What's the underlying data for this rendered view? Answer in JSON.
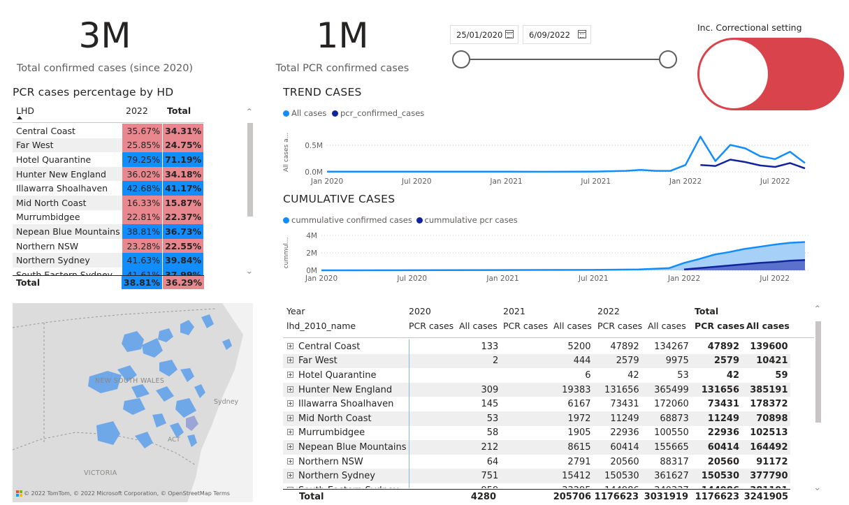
{
  "kpis": {
    "total_confirmed": {
      "value": "3M",
      "label": "Total confirmed cases (since 2020)"
    },
    "total_pcr": {
      "value": "1M",
      "label": "Total PCR confirmed cases"
    }
  },
  "date_slicer": {
    "start": "25/01/2020",
    "end": "6/09/2022"
  },
  "toggle": {
    "label": "Inc. Correctional setting",
    "state": "off",
    "color": "#d9434b"
  },
  "hd_matrix": {
    "title": "PCR cases percentage by HD",
    "col_name": "LHD",
    "col_2022": "2022",
    "col_total": "Total",
    "rows": [
      {
        "name": "Central Coast",
        "v2022": "35.67%",
        "total": "34.31%",
        "color": "pink"
      },
      {
        "name": "Far West",
        "v2022": "25.85%",
        "total": "24.75%",
        "color": "pink"
      },
      {
        "name": "Hotel Quarantine",
        "v2022": "79.25%",
        "total": "71.19%",
        "color": "blue"
      },
      {
        "name": "Hunter New England",
        "v2022": "36.02%",
        "total": "34.18%",
        "color": "pink"
      },
      {
        "name": "Illawarra Shoalhaven",
        "v2022": "42.68%",
        "total": "41.17%",
        "color": "blue"
      },
      {
        "name": "Mid North Coast",
        "v2022": "16.33%",
        "total": "15.87%",
        "color": "pink"
      },
      {
        "name": "Murrumbidgee",
        "v2022": "22.81%",
        "total": "22.37%",
        "color": "pink"
      },
      {
        "name": "Nepean Blue Mountains",
        "v2022": "38.81%",
        "total": "36.73%",
        "color": "blue"
      },
      {
        "name": "Northern NSW",
        "v2022": "23.28%",
        "total": "22.55%",
        "color": "pink"
      },
      {
        "name": "Northern Sydney",
        "v2022": "41.63%",
        "total": "39.84%",
        "color": "blue"
      }
    ],
    "partial_row": {
      "name": "South Eastern Sydney",
      "v2022": "41.61%",
      "total": "37.99%"
    },
    "total_row": {
      "name": "Total",
      "v2022": "38.81%",
      "total": "36.29%"
    }
  },
  "trend_chart": {
    "title": "TREND CASES",
    "legend": [
      "All cases",
      "pcr_confirmed_cases"
    ],
    "ylabel": "All cases a...",
    "yticks": [
      "0.5M",
      "0.0M"
    ],
    "xticks": [
      "Jan 2020",
      "Jul 2020",
      "Jan 2021",
      "Jul 2021",
      "Jan 2022",
      "Jul 2022"
    ]
  },
  "cum_chart": {
    "title": "CUMULATIVE CASES",
    "legend": [
      "cummulative confirmed cases",
      "cummulative pcr cases"
    ],
    "ylabel": "cummul...",
    "yticks": [
      "4M",
      "2M",
      "0M"
    ],
    "xticks": [
      "Jan 2020",
      "Jul 2020",
      "Jan 2021",
      "Jul 2021",
      "Jan 2022",
      "Jul 2022"
    ]
  },
  "chart_data": [
    {
      "type": "line",
      "title": "TREND CASES",
      "ylabel": "All cases a...",
      "x": [
        "2020-01",
        "2020-04",
        "2020-07",
        "2020-10",
        "2021-01",
        "2021-04",
        "2021-07",
        "2021-09",
        "2021-10",
        "2021-11",
        "2021-12",
        "2022-01",
        "2022-02",
        "2022-03",
        "2022-04",
        "2022-05",
        "2022-06",
        "2022-07",
        "2022-08",
        "2022-09"
      ],
      "series": [
        {
          "name": "All cases",
          "color": "#118dff",
          "values": [
            0.005,
            0.004,
            0.004,
            0.003,
            0.003,
            0.002,
            0.006,
            0.02,
            0.04,
            0.02,
            0.02,
            0.14,
            0.72,
            0.22,
            0.55,
            0.48,
            0.32,
            0.26,
            0.41,
            0.18
          ]
        },
        {
          "name": "pcr_confirmed_cases",
          "color": "#12239e",
          "values": [
            null,
            null,
            null,
            null,
            null,
            null,
            null,
            null,
            null,
            null,
            null,
            null,
            0.14,
            0.12,
            0.25,
            0.2,
            0.13,
            0.1,
            0.18,
            0.07
          ]
        }
      ],
      "ylim": [
        0,
        0.8
      ]
    },
    {
      "type": "area",
      "title": "CUMULATIVE CASES",
      "ylabel": "cummul...",
      "x": [
        "2020-01",
        "2020-07",
        "2021-01",
        "2021-07",
        "2021-10",
        "2021-12",
        "2022-01",
        "2022-02",
        "2022-03",
        "2022-04",
        "2022-05",
        "2022-06",
        "2022-07",
        "2022-08",
        "2022-09"
      ],
      "series": [
        {
          "name": "cummulative confirmed cases",
          "color": "#118dff",
          "values": [
            0.0,
            0.005,
            0.03,
            0.05,
            0.1,
            0.25,
            0.85,
            1.3,
            1.8,
            2.1,
            2.45,
            2.7,
            2.95,
            3.15,
            3.24
          ]
        },
        {
          "name": "cummulative pcr cases",
          "color": "#12239e",
          "values": [
            null,
            null,
            null,
            null,
            null,
            null,
            0.1,
            0.25,
            0.4,
            0.55,
            0.7,
            0.85,
            0.95,
            1.1,
            1.18
          ]
        }
      ],
      "ylim": [
        0,
        4
      ]
    }
  ],
  "map": {
    "labels": [
      "NEW SOUTH WALES",
      "Sydney",
      "ACT",
      "VICTORIA"
    ],
    "attribution": "© 2022 TomTom, © 2022 Microsoft Corporation, © OpenStreetMap  Terms"
  },
  "big_table": {
    "header_year": "Year",
    "header_name": "lhd_2010_name",
    "years": [
      "2020",
      "2021",
      "2022",
      "Total"
    ],
    "subcols": [
      "PCR cases",
      "All cases"
    ],
    "rows": [
      {
        "name": "Central Coast",
        "p20": "",
        "a20": "133",
        "p21": "",
        "a21": "5200",
        "p22": "47892",
        "a22": "134267",
        "pt": "47892",
        "at": "139600"
      },
      {
        "name": "Far West",
        "p20": "",
        "a20": "2",
        "p21": "",
        "a21": "444",
        "p22": "2579",
        "a22": "9975",
        "pt": "2579",
        "at": "10421"
      },
      {
        "name": "Hotel Quarantine",
        "p20": "",
        "a20": "",
        "p21": "",
        "a21": "6",
        "p22": "42",
        "a22": "53",
        "pt": "42",
        "at": "59"
      },
      {
        "name": "Hunter New England",
        "p20": "",
        "a20": "309",
        "p21": "",
        "a21": "19383",
        "p22": "131656",
        "a22": "365499",
        "pt": "131656",
        "at": "385191"
      },
      {
        "name": "Illawarra Shoalhaven",
        "p20": "",
        "a20": "145",
        "p21": "",
        "a21": "6167",
        "p22": "73431",
        "a22": "172060",
        "pt": "73431",
        "at": "178372"
      },
      {
        "name": "Mid North Coast",
        "p20": "",
        "a20": "53",
        "p21": "",
        "a21": "1972",
        "p22": "11249",
        "a22": "68873",
        "pt": "11249",
        "at": "70898"
      },
      {
        "name": "Murrumbidgee",
        "p20": "",
        "a20": "58",
        "p21": "",
        "a21": "1905",
        "p22": "22936",
        "a22": "100550",
        "pt": "22936",
        "at": "102513"
      },
      {
        "name": "Nepean Blue Mountains",
        "p20": "",
        "a20": "212",
        "p21": "",
        "a21": "8615",
        "p22": "60414",
        "a22": "155665",
        "pt": "60414",
        "at": "164492"
      },
      {
        "name": "Northern NSW",
        "p20": "",
        "a20": "64",
        "p21": "",
        "a21": "2791",
        "p22": "20560",
        "a22": "88317",
        "pt": "20560",
        "at": "91172"
      },
      {
        "name": "Northern Sydney",
        "p20": "",
        "a20": "751",
        "p21": "",
        "a21": "15412",
        "p22": "150530",
        "a22": "361627",
        "pt": "150530",
        "at": "377790"
      }
    ],
    "total_row": {
      "name": "Total",
      "p20": "",
      "a20": "4280",
      "p21": "",
      "a21": "205706",
      "p22": "1176623",
      "a22": "3031919",
      "pt": "1176623",
      "at": "3241905"
    }
  }
}
